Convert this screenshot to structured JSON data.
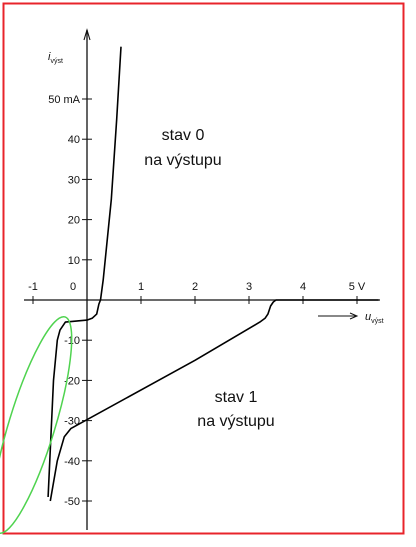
{
  "chart_data": {
    "type": "line",
    "title": "",
    "xlabel": {
      "main": "u",
      "sub": "výst"
    },
    "ylabel": {
      "main": "i",
      "sub": "výst"
    },
    "xlim": [
      -1.2,
      5.4
    ],
    "ylim": [
      -57,
      64
    ],
    "x_ticks": [
      {
        "value": -1,
        "label": "-1"
      },
      {
        "value": 0,
        "label": "0"
      },
      {
        "value": 1,
        "label": "1"
      },
      {
        "value": 2,
        "label": "2"
      },
      {
        "value": 3,
        "label": "3"
      },
      {
        "value": 4,
        "label": "4"
      },
      {
        "value": 5,
        "label": "5 V"
      }
    ],
    "y_ticks": [
      {
        "value": 50,
        "label": "50 mA"
      },
      {
        "value": 40,
        "label": "40"
      },
      {
        "value": 30,
        "label": "30"
      },
      {
        "value": 20,
        "label": "20"
      },
      {
        "value": 10,
        "label": "10"
      },
      {
        "value": -10,
        "label": "-10"
      },
      {
        "value": -20,
        "label": "-20"
      },
      {
        "value": -30,
        "label": "-30"
      },
      {
        "value": -40,
        "label": "-40"
      },
      {
        "value": -50,
        "label": "-50"
      }
    ],
    "series": [
      {
        "state": "0",
        "x": [
          -0.72,
          -0.62,
          -0.55,
          -0.5,
          -0.4,
          0.0,
          0.1,
          0.18,
          0.22,
          0.25,
          0.3,
          0.45,
          0.55,
          0.63
        ],
        "y": [
          -49,
          -20,
          -10,
          -7.5,
          -5.5,
          -5,
          -4.5,
          -3.5,
          -1,
          0,
          5,
          25,
          45,
          63
        ]
      },
      {
        "state": "1",
        "x": [
          -0.68,
          -0.55,
          -0.42,
          -0.3,
          2.0,
          3.2,
          3.3,
          3.35,
          3.4,
          3.45,
          3.5,
          3.6,
          5.4
        ],
        "y": [
          -50,
          -40,
          -34,
          -32,
          -15,
          -5.5,
          -4.5,
          -3.5,
          -1.5,
          -0.5,
          0,
          0,
          0
        ]
      }
    ],
    "annotations": [
      {
        "line1": "stav 0",
        "line2": "na výstupu"
      },
      {
        "line1": "stav 1",
        "line2": "na výstupu"
      }
    ],
    "colors": {
      "frame": "#e8242b",
      "highlight": "#4fd34f",
      "curve": "#000000"
    },
    "grid": false
  }
}
